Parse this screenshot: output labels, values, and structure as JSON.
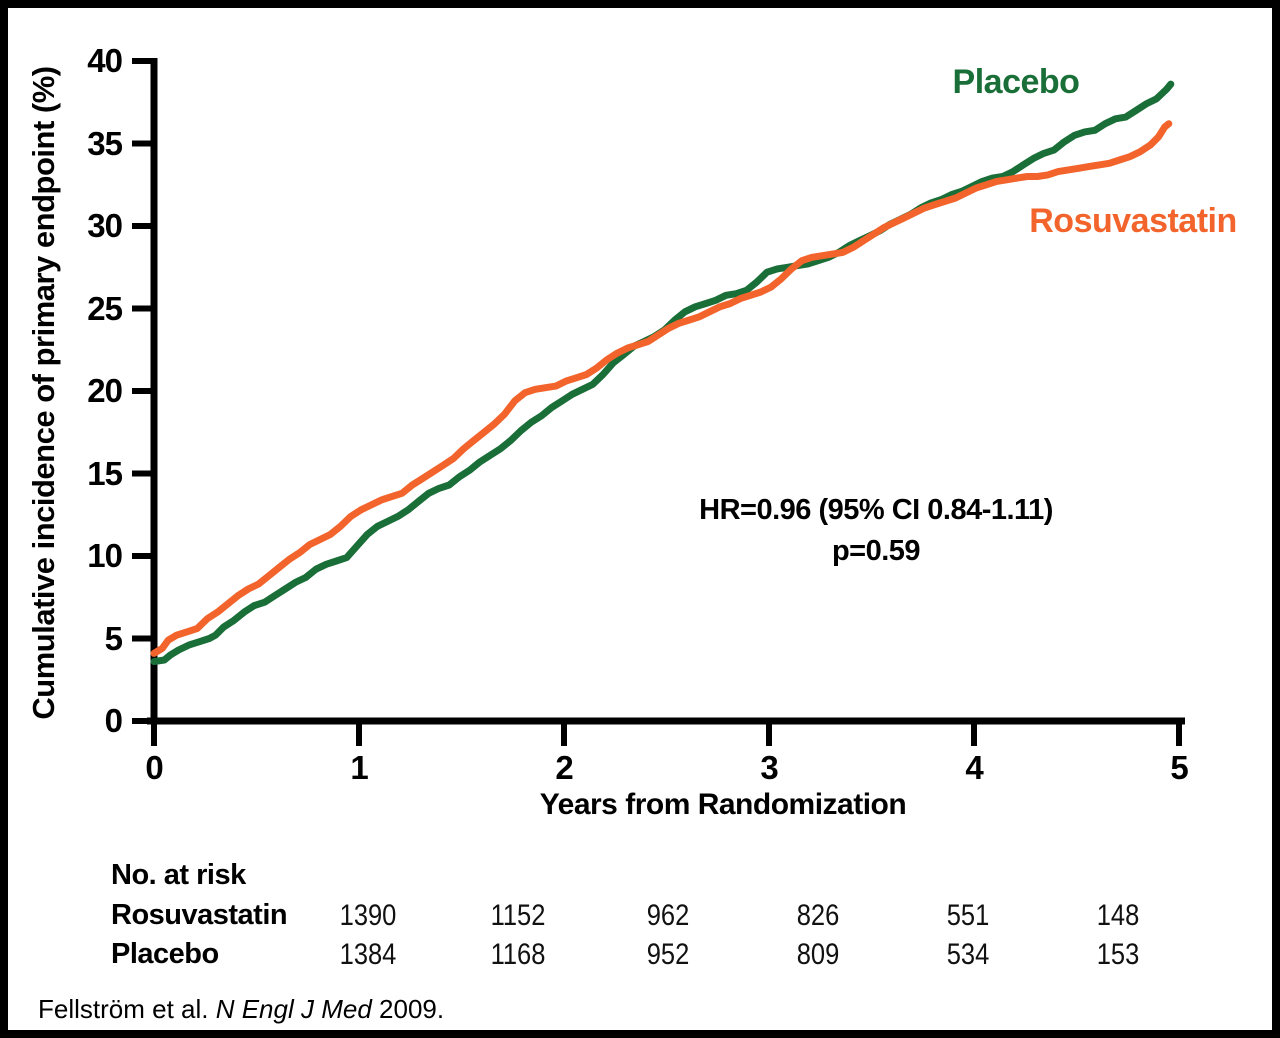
{
  "figure": {
    "citation": {
      "prefix": "Fellström et al. ",
      "journal": "N Engl J Med",
      "suffix": " 2009."
    }
  },
  "chart_data": {
    "type": "line",
    "title": "",
    "xlabel": "Years from Randomization",
    "ylabel": "Cumulative incidence of primary endpoint (%)",
    "xlim": [
      0,
      5
    ],
    "ylim": [
      0,
      40
    ],
    "x_ticks": [
      "0",
      "1",
      "2",
      "3",
      "4",
      "5"
    ],
    "y_ticks": [
      "0",
      "5",
      "10",
      "15",
      "20",
      "25",
      "30",
      "35",
      "40"
    ],
    "grid": false,
    "legend_position": "inline-labels-near-curves",
    "annotation": {
      "line1": "HR=0.96 (95% CI 0.84-1.11)",
      "line2": "p=0.59"
    },
    "axis_color": "#000000",
    "series": [
      {
        "name": "Placebo",
        "color": "#1A6E38",
        "points": [
          [
            0,
            3.6
          ],
          [
            0.05,
            3.7
          ],
          [
            0.08,
            4.0
          ],
          [
            0.12,
            4.3
          ],
          [
            0.17,
            4.6
          ],
          [
            0.22,
            4.8
          ],
          [
            0.27,
            5.0
          ],
          [
            0.3,
            5.2
          ],
          [
            0.34,
            5.7
          ],
          [
            0.39,
            6.1
          ],
          [
            0.44,
            6.6
          ],
          [
            0.49,
            7.0
          ],
          [
            0.54,
            7.2
          ],
          [
            0.59,
            7.6
          ],
          [
            0.64,
            8.0
          ],
          [
            0.69,
            8.4
          ],
          [
            0.74,
            8.7
          ],
          [
            0.79,
            9.2
          ],
          [
            0.84,
            9.5
          ],
          [
            0.89,
            9.7
          ],
          [
            0.94,
            9.9
          ],
          [
            0.99,
            10.6
          ],
          [
            1.04,
            11.3
          ],
          [
            1.09,
            11.8
          ],
          [
            1.14,
            12.1
          ],
          [
            1.19,
            12.4
          ],
          [
            1.24,
            12.8
          ],
          [
            1.29,
            13.3
          ],
          [
            1.34,
            13.8
          ],
          [
            1.39,
            14.1
          ],
          [
            1.44,
            14.3
          ],
          [
            1.49,
            14.8
          ],
          [
            1.54,
            15.2
          ],
          [
            1.59,
            15.7
          ],
          [
            1.64,
            16.1
          ],
          [
            1.69,
            16.5
          ],
          [
            1.74,
            17.0
          ],
          [
            1.79,
            17.6
          ],
          [
            1.84,
            18.1
          ],
          [
            1.89,
            18.5
          ],
          [
            1.94,
            19.0
          ],
          [
            1.99,
            19.4
          ],
          [
            2.04,
            19.8
          ],
          [
            2.09,
            20.1
          ],
          [
            2.14,
            20.4
          ],
          [
            2.19,
            21.0
          ],
          [
            2.24,
            21.7
          ],
          [
            2.29,
            22.2
          ],
          [
            2.34,
            22.7
          ],
          [
            2.39,
            23.0
          ],
          [
            2.44,
            23.3
          ],
          [
            2.49,
            23.7
          ],
          [
            2.54,
            24.3
          ],
          [
            2.59,
            24.8
          ],
          [
            2.64,
            25.1
          ],
          [
            2.69,
            25.3
          ],
          [
            2.74,
            25.5
          ],
          [
            2.79,
            25.8
          ],
          [
            2.84,
            25.9
          ],
          [
            2.89,
            26.1
          ],
          [
            2.94,
            26.6
          ],
          [
            2.99,
            27.2
          ],
          [
            3.04,
            27.4
          ],
          [
            3.09,
            27.5
          ],
          [
            3.14,
            27.6
          ],
          [
            3.19,
            27.7
          ],
          [
            3.24,
            27.9
          ],
          [
            3.29,
            28.1
          ],
          [
            3.34,
            28.4
          ],
          [
            3.39,
            28.8
          ],
          [
            3.44,
            29.1
          ],
          [
            3.49,
            29.4
          ],
          [
            3.54,
            29.7
          ],
          [
            3.59,
            30.1
          ],
          [
            3.64,
            30.4
          ],
          [
            3.69,
            30.7
          ],
          [
            3.74,
            31.1
          ],
          [
            3.79,
            31.4
          ],
          [
            3.84,
            31.6
          ],
          [
            3.89,
            31.9
          ],
          [
            3.94,
            32.1
          ],
          [
            3.99,
            32.4
          ],
          [
            4.04,
            32.7
          ],
          [
            4.09,
            32.9
          ],
          [
            4.14,
            33.0
          ],
          [
            4.19,
            33.3
          ],
          [
            4.24,
            33.7
          ],
          [
            4.29,
            34.1
          ],
          [
            4.34,
            34.4
          ],
          [
            4.39,
            34.6
          ],
          [
            4.44,
            35.1
          ],
          [
            4.49,
            35.5
          ],
          [
            4.54,
            35.7
          ],
          [
            4.59,
            35.8
          ],
          [
            4.64,
            36.2
          ],
          [
            4.69,
            36.5
          ],
          [
            4.74,
            36.6
          ],
          [
            4.79,
            37.0
          ],
          [
            4.84,
            37.4
          ],
          [
            4.89,
            37.7
          ],
          [
            4.94,
            38.3
          ],
          [
            4.96,
            38.6
          ]
        ]
      },
      {
        "name": "Rosuvastatin",
        "color": "#F2642C",
        "points": [
          [
            0,
            4.1
          ],
          [
            0.04,
            4.4
          ],
          [
            0.07,
            4.9
          ],
          [
            0.11,
            5.2
          ],
          [
            0.16,
            5.4
          ],
          [
            0.21,
            5.6
          ],
          [
            0.26,
            6.2
          ],
          [
            0.31,
            6.6
          ],
          [
            0.36,
            7.1
          ],
          [
            0.41,
            7.6
          ],
          [
            0.46,
            8.0
          ],
          [
            0.51,
            8.3
          ],
          [
            0.56,
            8.8
          ],
          [
            0.61,
            9.3
          ],
          [
            0.66,
            9.8
          ],
          [
            0.71,
            10.2
          ],
          [
            0.76,
            10.7
          ],
          [
            0.81,
            11.0
          ],
          [
            0.86,
            11.3
          ],
          [
            0.91,
            11.8
          ],
          [
            0.96,
            12.4
          ],
          [
            1.01,
            12.8
          ],
          [
            1.06,
            13.1
          ],
          [
            1.11,
            13.4
          ],
          [
            1.16,
            13.6
          ],
          [
            1.21,
            13.8
          ],
          [
            1.26,
            14.3
          ],
          [
            1.31,
            14.7
          ],
          [
            1.36,
            15.1
          ],
          [
            1.41,
            15.5
          ],
          [
            1.46,
            15.9
          ],
          [
            1.51,
            16.5
          ],
          [
            1.56,
            17.0
          ],
          [
            1.61,
            17.5
          ],
          [
            1.66,
            18.0
          ],
          [
            1.71,
            18.6
          ],
          [
            1.76,
            19.4
          ],
          [
            1.81,
            19.9
          ],
          [
            1.86,
            20.1
          ],
          [
            1.91,
            20.2
          ],
          [
            1.96,
            20.3
          ],
          [
            2.01,
            20.6
          ],
          [
            2.06,
            20.8
          ],
          [
            2.11,
            21.0
          ],
          [
            2.16,
            21.4
          ],
          [
            2.21,
            21.9
          ],
          [
            2.26,
            22.3
          ],
          [
            2.31,
            22.6
          ],
          [
            2.36,
            22.8
          ],
          [
            2.41,
            23.0
          ],
          [
            2.46,
            23.4
          ],
          [
            2.51,
            23.8
          ],
          [
            2.56,
            24.1
          ],
          [
            2.61,
            24.3
          ],
          [
            2.66,
            24.5
          ],
          [
            2.71,
            24.8
          ],
          [
            2.76,
            25.1
          ],
          [
            2.81,
            25.3
          ],
          [
            2.86,
            25.6
          ],
          [
            2.91,
            25.8
          ],
          [
            2.96,
            26.0
          ],
          [
            3.01,
            26.3
          ],
          [
            3.06,
            26.8
          ],
          [
            3.11,
            27.4
          ],
          [
            3.16,
            27.9
          ],
          [
            3.21,
            28.1
          ],
          [
            3.26,
            28.2
          ],
          [
            3.31,
            28.3
          ],
          [
            3.36,
            28.4
          ],
          [
            3.41,
            28.7
          ],
          [
            3.46,
            29.1
          ],
          [
            3.51,
            29.5
          ],
          [
            3.56,
            29.9
          ],
          [
            3.61,
            30.2
          ],
          [
            3.66,
            30.5
          ],
          [
            3.71,
            30.8
          ],
          [
            3.76,
            31.1
          ],
          [
            3.81,
            31.3
          ],
          [
            3.86,
            31.5
          ],
          [
            3.91,
            31.7
          ],
          [
            3.96,
            32.0
          ],
          [
            4.01,
            32.3
          ],
          [
            4.06,
            32.5
          ],
          [
            4.11,
            32.7
          ],
          [
            4.16,
            32.8
          ],
          [
            4.21,
            32.9
          ],
          [
            4.26,
            33.0
          ],
          [
            4.31,
            33.0
          ],
          [
            4.36,
            33.1
          ],
          [
            4.41,
            33.3
          ],
          [
            4.46,
            33.4
          ],
          [
            4.51,
            33.5
          ],
          [
            4.56,
            33.6
          ],
          [
            4.61,
            33.7
          ],
          [
            4.66,
            33.8
          ],
          [
            4.71,
            34.0
          ],
          [
            4.76,
            34.2
          ],
          [
            4.81,
            34.5
          ],
          [
            4.86,
            34.9
          ],
          [
            4.9,
            35.4
          ],
          [
            4.93,
            36.0
          ],
          [
            4.95,
            36.2
          ]
        ]
      }
    ],
    "at_risk": {
      "header": "No. at risk",
      "rows": [
        {
          "label": "Rosuvastatin",
          "values": [
            "1390",
            "1152",
            "962",
            "826",
            "551",
            "148"
          ]
        },
        {
          "label": "Placebo",
          "values": [
            "1384",
            "1168",
            "952",
            "809",
            "534",
            "153"
          ]
        }
      ]
    }
  }
}
